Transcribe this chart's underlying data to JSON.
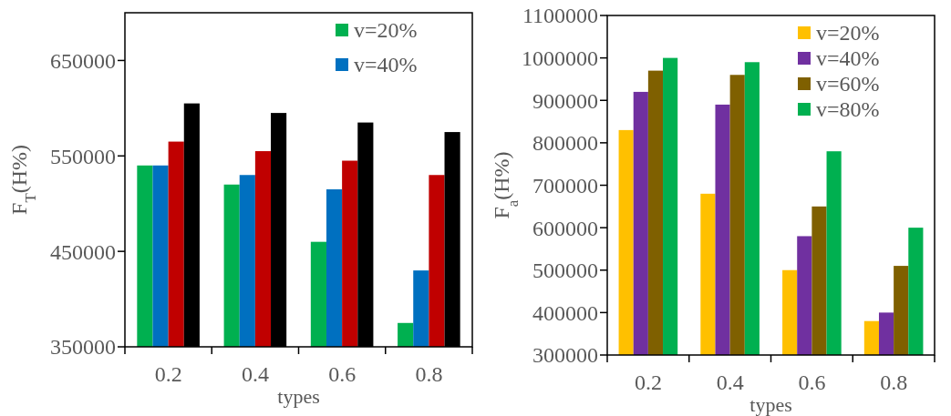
{
  "chart_data": [
    {
      "type": "bar",
      "categories": [
        "0.2",
        "0.4",
        "0.6",
        "0.8"
      ],
      "xlabel": "types",
      "ylabel": "F$_{T}$(H%)",
      "ylim": [
        350000,
        700000
      ],
      "yticks": [
        350000,
        450000,
        550000,
        650000
      ],
      "legend": "top right",
      "series": [
        {
          "name": "v=20%",
          "color": "#00b050",
          "values": [
            540000,
            520000,
            460000,
            375000
          ]
        },
        {
          "name": "v=40%",
          "color": "#0070c0",
          "values": [
            540000,
            530000,
            515000,
            430000
          ]
        },
        {
          "color": "#c00000",
          "values": [
            565000,
            555000,
            545000,
            530000
          ]
        },
        {
          "color": "#000000",
          "values": [
            605000,
            595000,
            585000,
            575000
          ]
        }
      ]
    },
    {
      "type": "bar",
      "categories": [
        "0.2",
        "0.4",
        "0.6",
        "0.8"
      ],
      "xlabel": "types",
      "ylabel": "F$_{a}$(H%)",
      "ylim": [
        300000,
        1100000
      ],
      "yticks": [
        300000,
        400000,
        500000,
        600000,
        700000,
        800000,
        900000,
        1000000,
        1100000
      ],
      "legend": "top right",
      "series": [
        {
          "name": "v=20%",
          "color": "#ffc000",
          "values": [
            830000,
            680000,
            500000,
            380000
          ]
        },
        {
          "name": "v=40%",
          "color": "#7030a0",
          "values": [
            920000,
            890000,
            580000,
            400000
          ]
        },
        {
          "name": "v=60%",
          "color": "#7f6000",
          "values": [
            970000,
            960000,
            650000,
            510000
          ]
        },
        {
          "name": "v=80%",
          "color": "#00b050",
          "values": [
            1000000,
            990000,
            780000,
            600000
          ]
        }
      ]
    }
  ]
}
